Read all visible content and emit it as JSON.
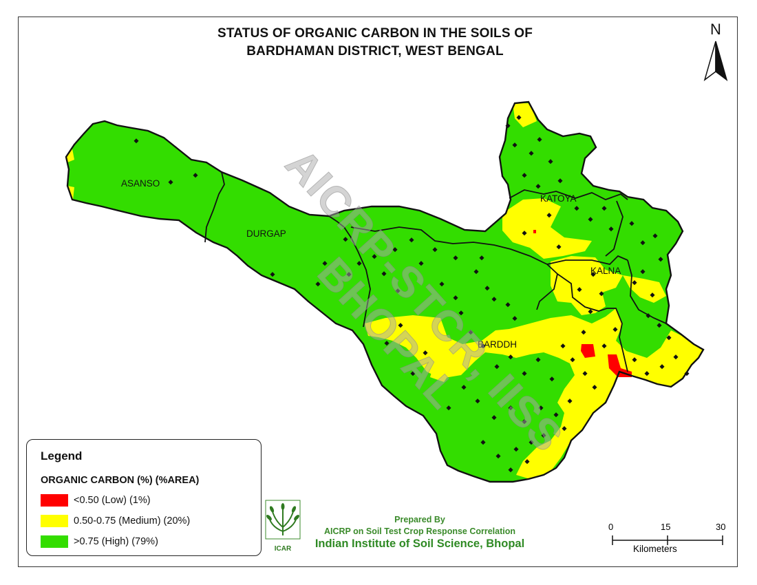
{
  "title": {
    "line1": "STATUS OF ORGANIC CARBON IN THE SOILS OF",
    "line2": "BARDHAMAN DISTRICT, WEST BENGAL"
  },
  "north_arrow": {
    "label": "N",
    "icon": "north-arrow-icon"
  },
  "watermark": "AICRP-STCR, IISS BHOPAL",
  "districts": [
    {
      "name": "ASANSO"
    },
    {
      "name": "DURGAP"
    },
    {
      "name": "KATOYA"
    },
    {
      "name": "KALNA"
    },
    {
      "name": "BARDDH"
    }
  ],
  "legend": {
    "title": "Legend",
    "subtitle": "ORGANIC CARBON (%) (%AREA)",
    "items": [
      {
        "label": "<0.50 (Low) (1%)",
        "color": "#ff0000"
      },
      {
        "label": "0.50-0.75 (Medium) (20%)",
        "color": "#ffff00"
      },
      {
        "label": ">0.75 (High) (79%)",
        "color": "#33dd00"
      }
    ]
  },
  "credit": {
    "prepared_by": "Prepared By",
    "program": "AICRP on Soil Test Crop Response Correlation",
    "institute": "Indian Institute of Soil Science, Bhopal"
  },
  "logo": {
    "icon": "icar-logo-icon",
    "text": "ICAR"
  },
  "scale_bar": {
    "ticks": [
      "0",
      "15",
      "30"
    ],
    "unit": "Kilometers"
  },
  "colors": {
    "high": "#33dd00",
    "medium": "#ffff00",
    "low": "#ff0000",
    "boundary": "#111111",
    "sample_point": "#111111"
  }
}
